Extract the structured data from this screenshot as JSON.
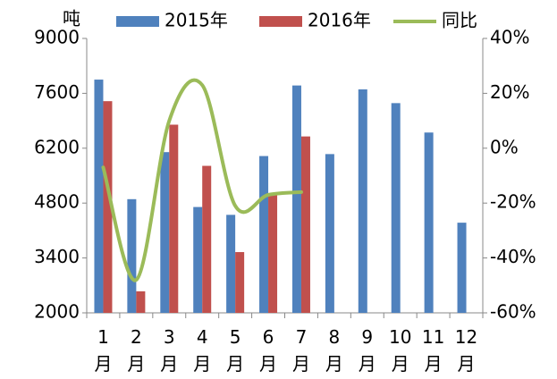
{
  "chart_data": {
    "type": "bar",
    "unit_label": "吨",
    "categories": [
      "1月",
      "2月",
      "3月",
      "4月",
      "5月",
      "6月",
      "7月",
      "8月",
      "9月",
      "10月",
      "11月",
      "12月"
    ],
    "series": [
      {
        "name": "2015年",
        "type": "bar",
        "color": "#4f81bd",
        "values": [
          7950,
          4900,
          6100,
          4700,
          4500,
          6000,
          7800,
          6050,
          7700,
          7350,
          6600,
          4300
        ]
      },
      {
        "name": "2016年",
        "type": "bar",
        "color": "#c0504d",
        "values": [
          7400,
          2550,
          6800,
          5750,
          3550,
          5000,
          6500,
          null,
          null,
          null,
          null,
          null
        ]
      },
      {
        "name": "同比",
        "type": "line",
        "axis": "y2",
        "color": "#9bbb59",
        "values": [
          -7,
          -48,
          10,
          23,
          -21,
          -17,
          -16,
          null,
          null,
          null,
          null,
          null
        ]
      }
    ],
    "ylim": [
      2000,
      9000
    ],
    "yticks": [
      2000,
      3400,
      4800,
      6200,
      7600,
      9000
    ],
    "y2lim": [
      -60,
      40
    ],
    "y2ticks": [
      {
        "value": -60,
        "label": "-60%"
      },
      {
        "value": -40,
        "label": "-40%"
      },
      {
        "value": -20,
        "label": "-20%"
      },
      {
        "value": 0,
        "label": "0%"
      },
      {
        "value": 20,
        "label": "20%"
      },
      {
        "value": 40,
        "label": "40%"
      }
    ],
    "legend": "top"
  }
}
